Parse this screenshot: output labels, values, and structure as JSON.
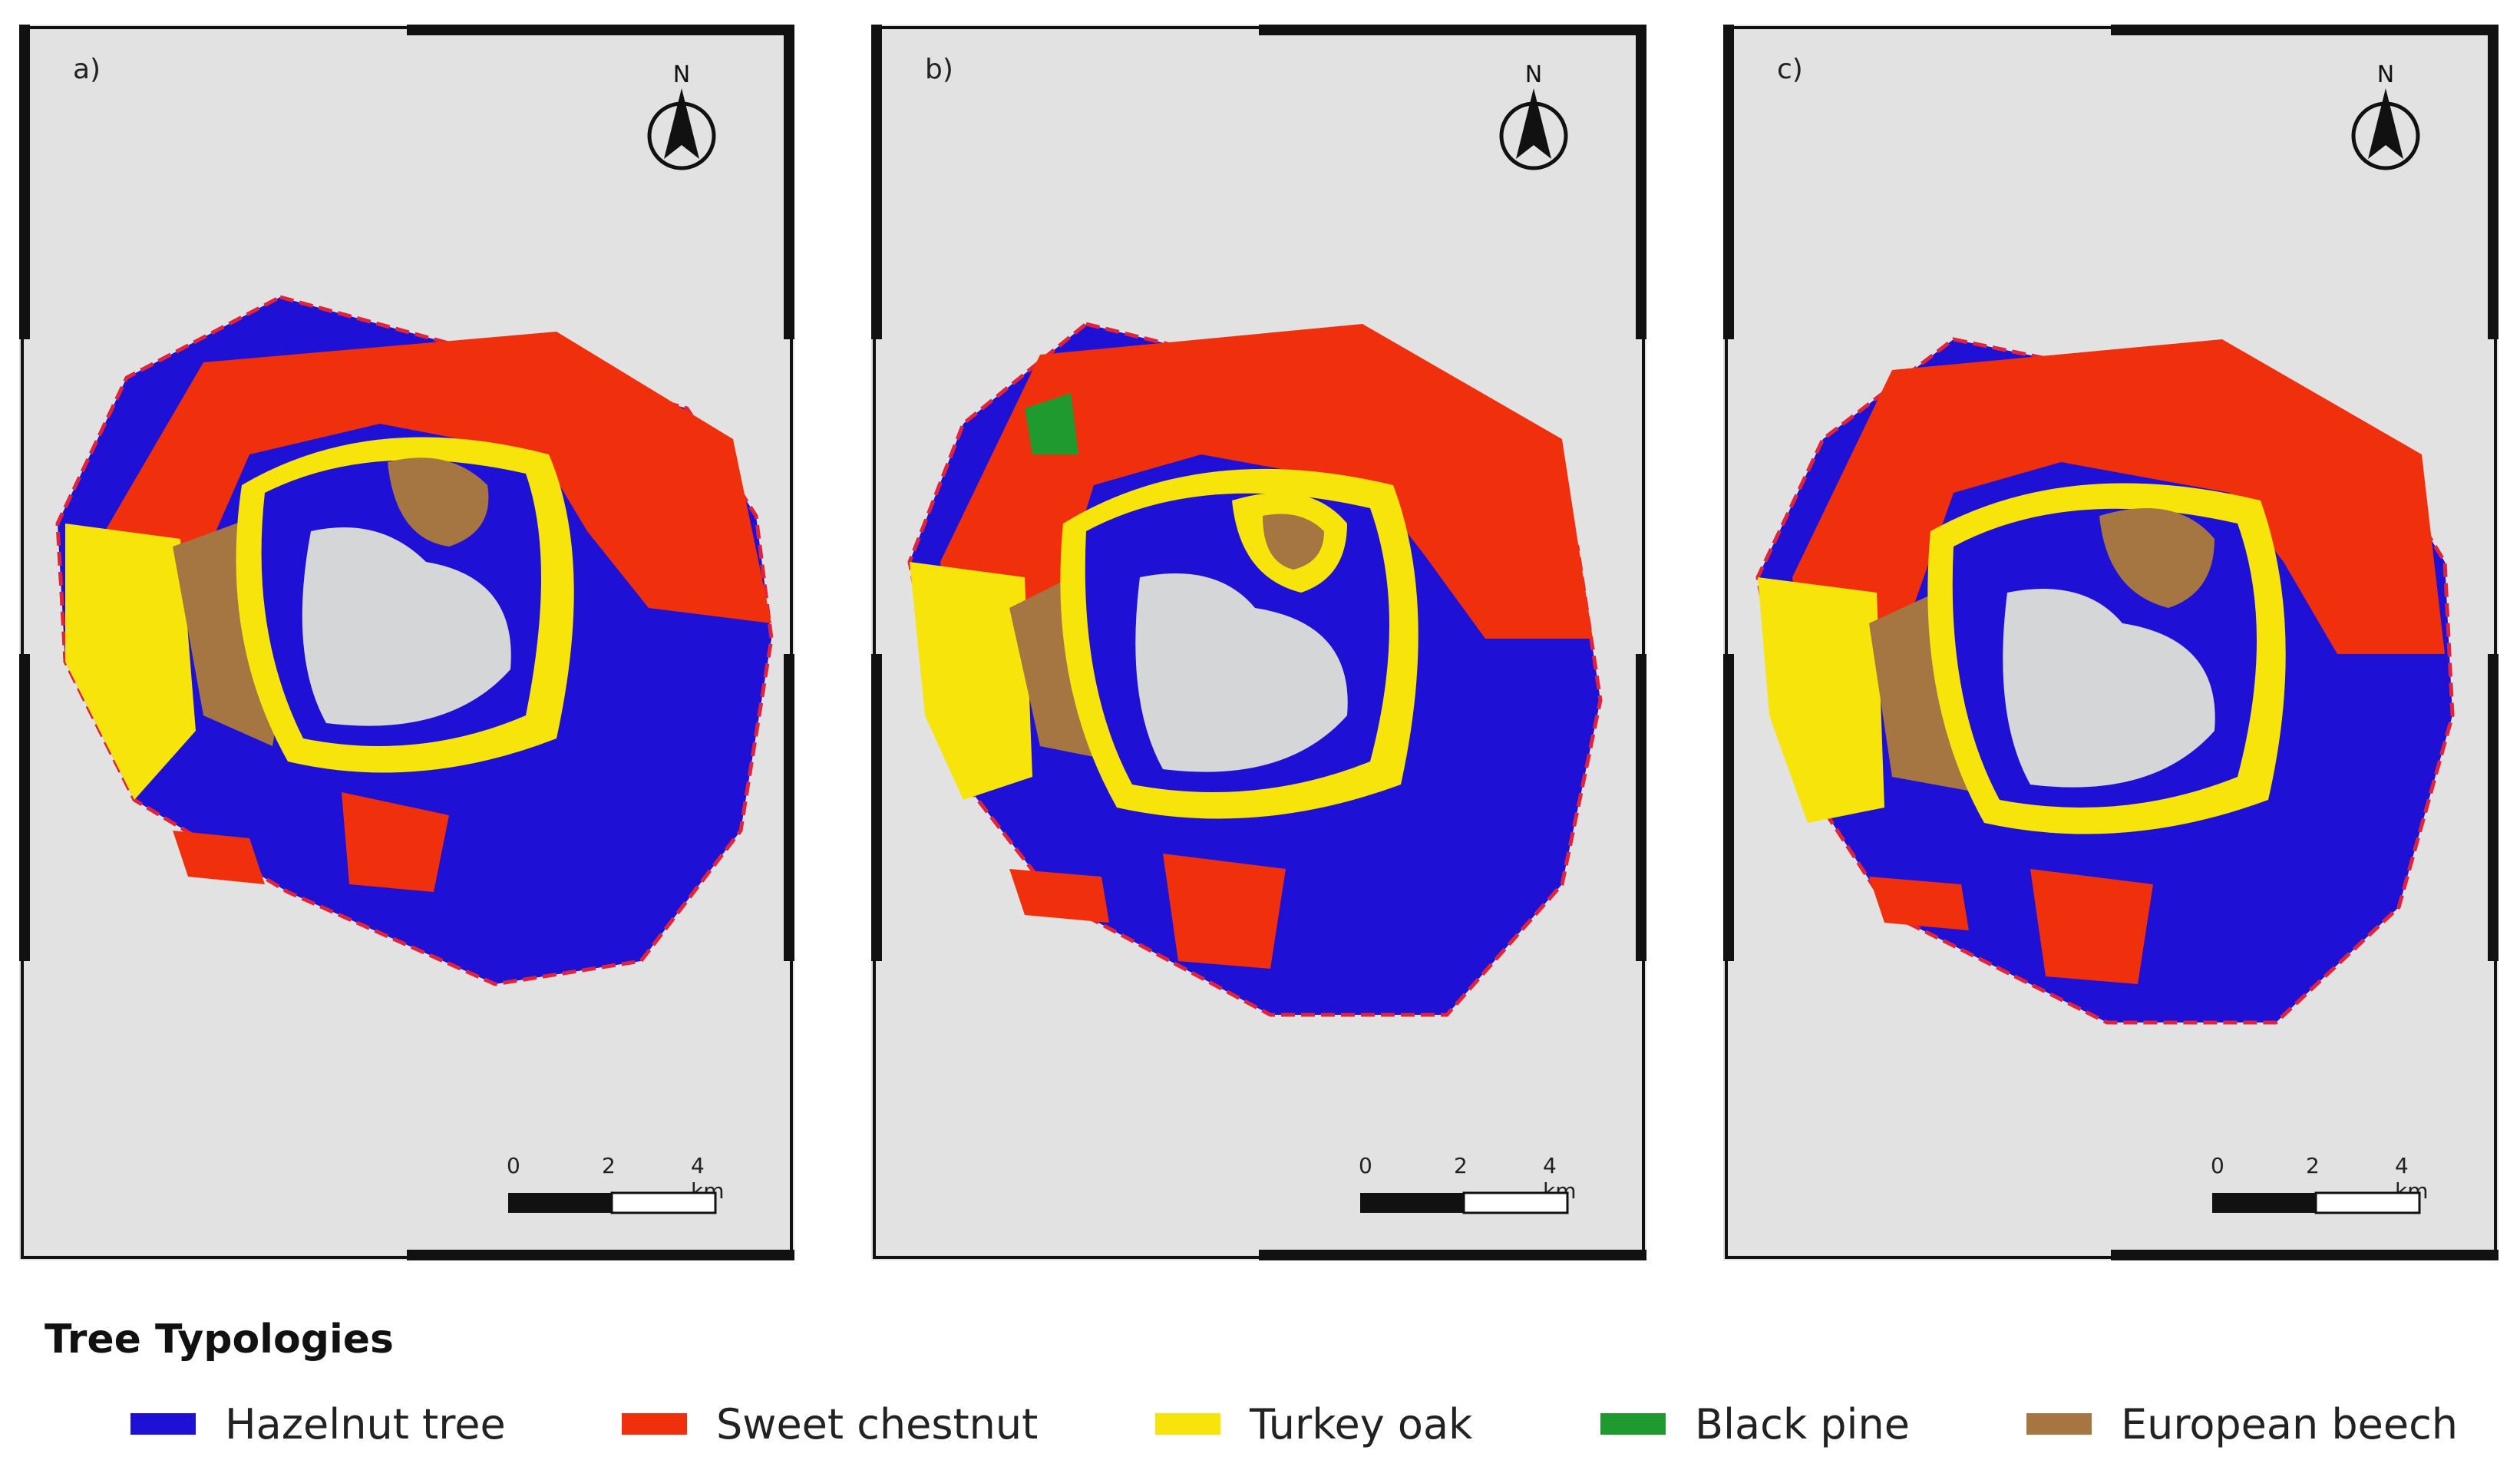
{
  "colors": {
    "background": "#e2e2e2",
    "hazelnut": "#1f10d6",
    "chestnut": "#f0300c",
    "turkey_oak": "#f6e40a",
    "black_pine": "#1e9a2e",
    "beech": "#a57542",
    "boundary": "#e0223a",
    "lake": "#d4d6d8"
  },
  "panels": [
    {
      "label": "a)"
    },
    {
      "label": "b)"
    },
    {
      "label": "c)"
    }
  ],
  "north_label": "N",
  "scale": {
    "zero": "0",
    "mid": "2",
    "end": "4 km"
  },
  "legend": {
    "title": "Tree Typologies",
    "items": [
      {
        "label": "Hazelnut tree",
        "color": "#1f10d6"
      },
      {
        "label": "Sweet chestnut",
        "color": "#f0300c"
      },
      {
        "label": "Turkey oak",
        "color": "#f6e40a"
      },
      {
        "label": "Black pine",
        "color": "#1e9a2e"
      },
      {
        "label": "European beech",
        "color": "#a57542"
      }
    ]
  }
}
